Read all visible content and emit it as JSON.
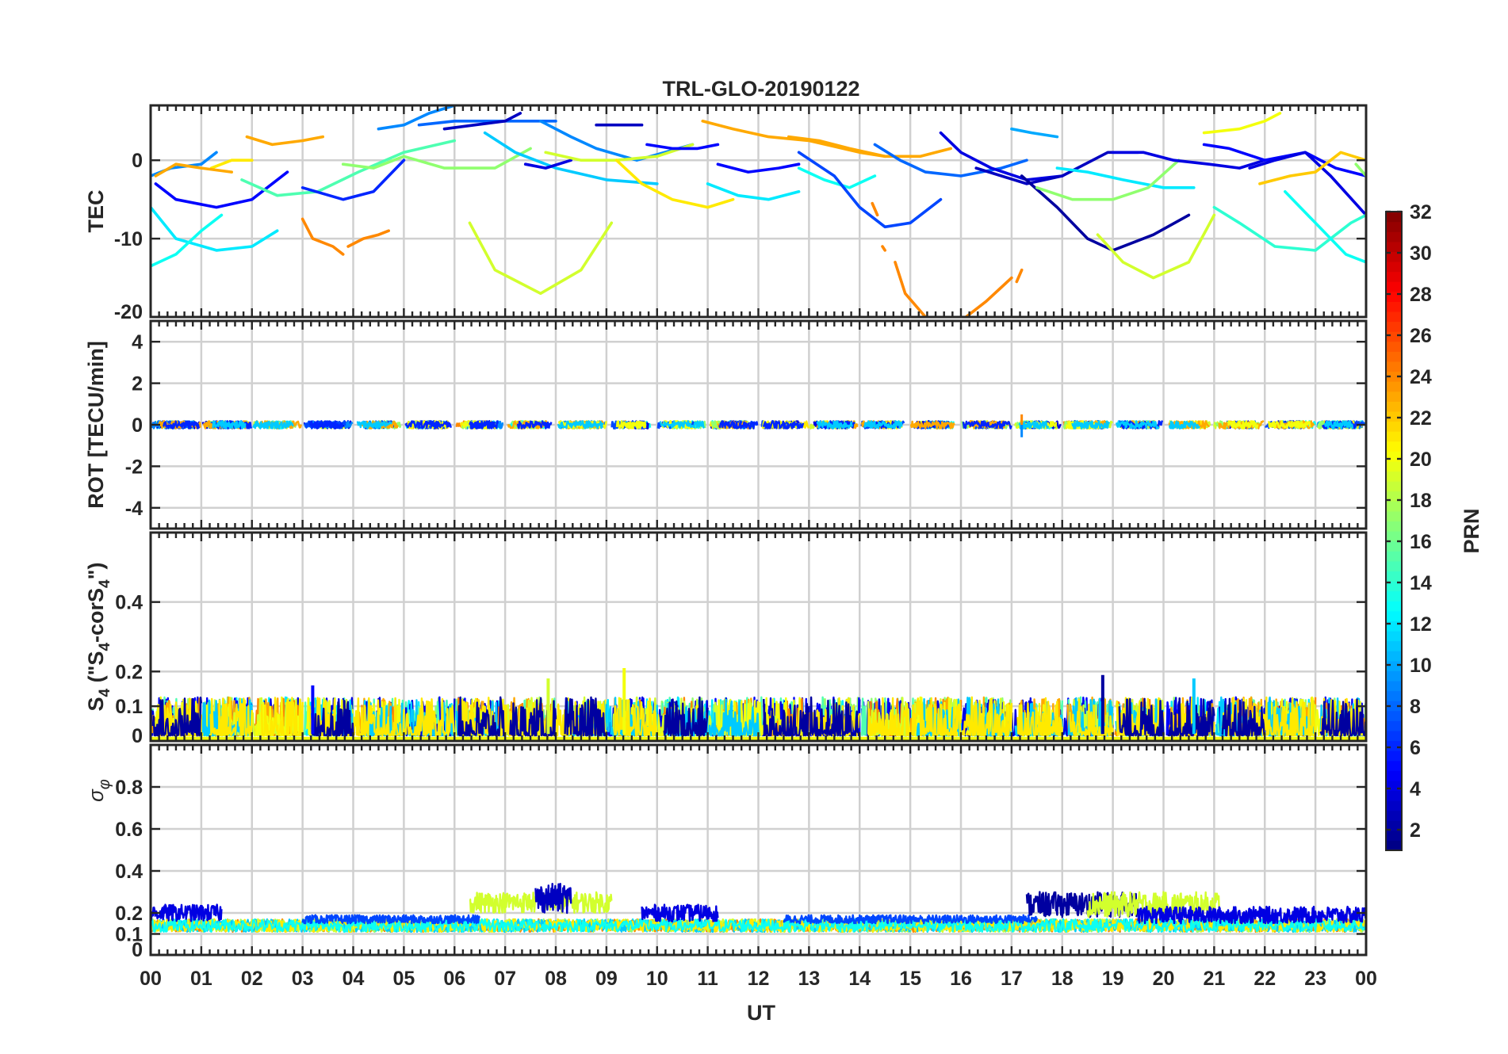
{
  "chart_data": {
    "type": "line",
    "title": "TRL-GLO-20190122",
    "xlabel": "UT",
    "x_tick_labels": [
      "00",
      "01",
      "02",
      "03",
      "04",
      "05",
      "06",
      "07",
      "08",
      "09",
      "10",
      "11",
      "12",
      "13",
      "14",
      "15",
      "16",
      "17",
      "18",
      "19",
      "20",
      "21",
      "22",
      "23",
      "00"
    ],
    "xlim": [
      0,
      24
    ],
    "panels": [
      {
        "id": "tec",
        "ylabel": "TEC",
        "ylim": [
          -20,
          7
        ],
        "yticks": [
          0,
          -10,
          -20
        ],
        "ytick_labels": [
          "0",
          "-10",
          "-20"
        ],
        "grid_y": [
          0,
          -10
        ],
        "series": [
          {
            "prn": 9,
            "x": [
              0.0,
              0.4,
              1.0,
              1.3
            ],
            "y": [
              -2,
              -1,
              -0.5,
              1
            ]
          },
          {
            "prn": 5,
            "x": [
              0.1,
              0.5,
              1.3,
              2.0,
              2.7
            ],
            "y": [
              -3,
              -5,
              -6,
              -5,
              -1.5
            ]
          },
          {
            "prn": 12,
            "x": [
              0.0,
              0.5,
              1.3,
              2.0,
              2.5
            ],
            "y": [
              -6,
              -10,
              -11.5,
              -11,
              -9
            ]
          },
          {
            "prn": 13,
            "x": [
              0.0,
              0.5,
              1.0,
              1.4
            ],
            "y": [
              -13.5,
              -12,
              -9,
              -7
            ]
          },
          {
            "prn": 21,
            "x": [
              1.2,
              1.6,
              2.0
            ],
            "y": [
              -1,
              0,
              0
            ]
          },
          {
            "prn": 23,
            "x": [
              1.9,
              2.4,
              3.0,
              3.4
            ],
            "y": [
              3,
              2,
              2.5,
              3
            ]
          },
          {
            "prn": 23,
            "x": [
              0.1,
              0.5,
              1.0,
              1.6
            ],
            "y": [
              -2,
              -0.5,
              -1,
              -1.5
            ]
          },
          {
            "prn": 15,
            "x": [
              1.8,
              2.5,
              3.3,
              4.1,
              5.0,
              6.0
            ],
            "y": [
              -2.5,
              -4.5,
              -4,
              -1.5,
              1,
              2.5
            ]
          },
          {
            "prn": 17,
            "x": [
              3.8,
              4.4,
              5.0,
              5.8,
              6.8,
              7.5
            ],
            "y": [
              -0.5,
              -1,
              0.5,
              -1,
              -1,
              1.5
            ]
          },
          {
            "prn": 6,
            "x": [
              3.0,
              3.8,
              4.4,
              5.0
            ],
            "y": [
              -3.5,
              -5,
              -4,
              0
            ]
          },
          {
            "prn": 24,
            "x": [
              3.0,
              3.2,
              3.6,
              3.8
            ],
            "y": [
              -7.5,
              -10,
              -11,
              -12
            ]
          },
          {
            "prn": 24,
            "x": [
              3.9,
              4.2,
              4.5,
              4.7
            ],
            "y": [
              -11,
              -10,
              -9.5,
              -9
            ]
          },
          {
            "prn": 9,
            "x": [
              4.5,
              5.0,
              5.5,
              6.0,
              6.6
            ],
            "y": [
              4,
              4.5,
              6,
              7,
              7.5
            ]
          },
          {
            "prn": 8,
            "x": [
              5.3,
              6.0,
              7.0,
              8.0
            ],
            "y": [
              4.5,
              5,
              5,
              5
            ]
          },
          {
            "prn": 3,
            "x": [
              5.8,
              6.4,
              7.0,
              7.3
            ],
            "y": [
              4,
              4.5,
              5,
              6
            ]
          },
          {
            "prn": 19,
            "x": [
              6.3,
              6.8,
              7.7,
              8.5,
              9.1
            ],
            "y": [
              -8,
              -14,
              -17,
              -14,
              -8
            ]
          },
          {
            "prn": 11,
            "x": [
              6.6,
              7.2,
              8.0,
              9.0,
              10.0
            ],
            "y": [
              3.5,
              1,
              -1,
              -2.5,
              -3
            ]
          },
          {
            "prn": 4,
            "x": [
              7.4,
              7.8,
              8.3
            ],
            "y": [
              -0.5,
              -1,
              0
            ]
          },
          {
            "prn": 9,
            "x": [
              7.7,
              8.3,
              8.8,
              9.6,
              10.7
            ],
            "y": [
              5,
              3,
              1.5,
              0,
              2
            ]
          },
          {
            "prn": 3,
            "x": [
              8.8,
              9.2,
              9.7
            ],
            "y": [
              4.5,
              4.5,
              4.5
            ]
          },
          {
            "prn": 19,
            "x": [
              7.8,
              8.5,
              9.2,
              10.0,
              10.7
            ],
            "y": [
              1,
              0,
              0,
              0.5,
              2
            ]
          },
          {
            "prn": 21,
            "x": [
              9.2,
              9.7,
              10.3,
              11.0,
              11.5
            ],
            "y": [
              0,
              -3,
              -5,
              -6,
              -5
            ]
          },
          {
            "prn": 5,
            "x": [
              9.8,
              10.3,
              10.8,
              11.2
            ],
            "y": [
              2,
              1.5,
              1.5,
              2
            ]
          },
          {
            "prn": 23,
            "x": [
              10.9,
              11.5,
              12.2,
              13.0,
              14.0,
              14.5
            ],
            "y": [
              5,
              4,
              3,
              2.5,
              1,
              0.5
            ]
          },
          {
            "prn": 5,
            "x": [
              11.2,
              11.8,
              12.4,
              12.8
            ],
            "y": [
              -0.5,
              -1.5,
              -1,
              -0.5
            ]
          },
          {
            "prn": 12,
            "x": [
              11.0,
              11.6,
              12.2,
              12.8
            ],
            "y": [
              -3,
              -4.5,
              -5,
              -4
            ]
          },
          {
            "prn": 23,
            "x": [
              12.6,
              13.2,
              13.8,
              14.5,
              15.2,
              15.8
            ],
            "y": [
              3,
              2.5,
              1.5,
              0.5,
              0.5,
              1.5
            ]
          },
          {
            "prn": 13,
            "x": [
              12.8,
              13.3,
              13.8,
              14.3
            ],
            "y": [
              -1,
              -2.5,
              -3.5,
              -2
            ]
          },
          {
            "prn": 7,
            "x": [
              12.8,
              13.5,
              14.0,
              14.5,
              15.0,
              15.6
            ],
            "y": [
              1,
              -2,
              -6,
              -8.5,
              -8,
              -5
            ]
          },
          {
            "prn": 24,
            "x": [
              14.25,
              14.35
            ],
            "y": [
              -5.5,
              -7
            ]
          },
          {
            "prn": 24,
            "x": [
              14.45,
              14.5
            ],
            "y": [
              -11,
              -11.5
            ]
          },
          {
            "prn": 24,
            "x": [
              14.7,
              14.9,
              15.3,
              15.9,
              16.5,
              17.0
            ],
            "y": [
              -13,
              -17,
              -20,
              -21,
              -18,
              -15
            ]
          },
          {
            "prn": 24,
            "x": [
              17.1,
              17.2
            ],
            "y": [
              -15.5,
              -14
            ]
          },
          {
            "prn": 8,
            "x": [
              14.3,
              14.8,
              15.3,
              16.0,
              16.8,
              17.3
            ],
            "y": [
              2,
              0,
              -1.5,
              -2,
              -1,
              0
            ]
          },
          {
            "prn": 4,
            "x": [
              15.6,
              16.0,
              16.6,
              17.3,
              18.0
            ],
            "y": [
              3.5,
              1,
              -1,
              -2.5,
              -2
            ]
          },
          {
            "prn": 3,
            "x": [
              16.3,
              16.8,
              17.3,
              18.0,
              18.9,
              19.5
            ],
            "y": [
              -1,
              -2,
              -3,
              -2,
              1,
              1
            ]
          },
          {
            "prn": 2,
            "x": [
              17.2,
              17.9,
              18.5,
              19.0,
              19.8,
              20.5
            ],
            "y": [
              -2,
              -6,
              -10,
              -11.5,
              -9.5,
              -7
            ]
          },
          {
            "prn": 10,
            "x": [
              17.0,
              17.4,
              17.9
            ],
            "y": [
              4,
              3.5,
              3
            ]
          },
          {
            "prn": 12,
            "x": [
              17.9,
              18.5,
              19.2,
              20.0,
              20.6
            ],
            "y": [
              -1,
              -1.5,
              -2.5,
              -3.5,
              -3.5
            ]
          },
          {
            "prn": 17,
            "x": [
              17.5,
              18.2,
              19.0,
              19.7,
              20.3
            ],
            "y": [
              -3.5,
              -5,
              -5,
              -3.5,
              0
            ]
          },
          {
            "prn": 19,
            "x": [
              18.7,
              19.2,
              19.8,
              20.5,
              21.0
            ],
            "y": [
              -9.5,
              -13,
              -15,
              -13,
              -7
            ]
          },
          {
            "prn": 4,
            "x": [
              19.0,
              19.6,
              20.2,
              20.9,
              21.5,
              22.0
            ],
            "y": [
              1,
              1,
              0,
              -0.5,
              -1,
              0
            ]
          },
          {
            "prn": 20,
            "x": [
              20.8,
              21.5,
              22.0,
              22.3
            ],
            "y": [
              3.5,
              4,
              5,
              6
            ]
          },
          {
            "prn": 5,
            "x": [
              20.8,
              21.3,
              22.0,
              22.8,
              23.4,
              24.0
            ],
            "y": [
              2,
              1.5,
              0,
              1,
              -1,
              -2
            ]
          },
          {
            "prn": 4,
            "x": [
              21.7,
              22.2,
              22.8,
              23.3,
              24.0
            ],
            "y": [
              -1,
              0,
              1,
              -2,
              -7
            ]
          },
          {
            "prn": 22,
            "x": [
              21.9,
              22.5,
              23.0,
              23.5,
              24.0
            ],
            "y": [
              -3,
              -2,
              -1.5,
              1,
              0
            ]
          },
          {
            "prn": 14,
            "x": [
              21.0,
              21.5,
              22.2,
              23.0,
              23.7,
              24.0
            ],
            "y": [
              -6,
              -8,
              -11,
              -11.5,
              -8,
              -7
            ]
          },
          {
            "prn": 13,
            "x": [
              22.4,
              23.0,
              23.6,
              24.0
            ],
            "y": [
              -4,
              -8,
              -12,
              -13
            ]
          },
          {
            "prn": 17,
            "x": [
              23.8,
              24.0
            ],
            "y": [
              -0.5,
              -2
            ]
          }
        ]
      },
      {
        "id": "rot",
        "ylabel": "ROT [TECU/min]",
        "ylim": [
          -5,
          5
        ],
        "yticks": [
          4,
          2,
          0,
          -2,
          -4
        ],
        "ytick_labels": [
          "4",
          "2",
          "0",
          "-2",
          "-4"
        ],
        "grid_y": [
          4,
          2,
          0,
          -2,
          -4
        ],
        "noise": {
          "center": 0,
          "amplitude": 0.18,
          "spikes": [
            {
              "x": 17.2,
              "y": -0.6,
              "prn": 9
            },
            {
              "x": 17.2,
              "y": 0.5,
              "prn": 24
            }
          ]
        }
      },
      {
        "id": "s4",
        "ylabel": "S4 (\"S4-corS4\")",
        "ylim": [
          0,
          0.6
        ],
        "yticks": [
          0.4,
          0.2,
          0.1,
          0
        ],
        "ytick_labels": [
          "0.4",
          "0.2",
          "0.1",
          "0"
        ],
        "grid_y": [
          0.4,
          0.2,
          0.1
        ],
        "noise": {
          "center": 0.04,
          "amplitude": 0.05,
          "peaks": [
            {
              "x": 9.35,
              "y": 0.21,
              "prn": 20
            },
            {
              "x": 18.8,
              "y": 0.19,
              "prn": 2
            },
            {
              "x": 7.85,
              "y": 0.18,
              "prn": 19
            },
            {
              "x": 3.2,
              "y": 0.16,
              "prn": 5
            },
            {
              "x": 20.6,
              "y": 0.18,
              "prn": 11
            }
          ]
        }
      },
      {
        "id": "sigma_phi",
        "ylabel": "σφ",
        "ylim": [
          0,
          1
        ],
        "yticks": [
          0.8,
          0.6,
          0.4,
          0.2,
          0.1,
          0
        ],
        "ytick_labels": [
          "0.8",
          "0.6",
          "0.4",
          "0.2",
          "0.1",
          "0"
        ],
        "grid_y": [
          0.8,
          0.6,
          0.4,
          0.2,
          0.1
        ],
        "bands": [
          {
            "prn": 4,
            "x": [
              0.0,
              1.4
            ],
            "center": 0.2,
            "amp": 0.04
          },
          {
            "prn": 19,
            "x": [
              6.3,
              9.1
            ],
            "center": 0.25,
            "amp": 0.05
          },
          {
            "prn": 3,
            "x": [
              7.6,
              8.3
            ],
            "center": 0.27,
            "amp": 0.07
          },
          {
            "prn": 4,
            "x": [
              9.7,
              11.2
            ],
            "center": 0.2,
            "amp": 0.04
          },
          {
            "prn": 2,
            "x": [
              17.3,
              19.5
            ],
            "center": 0.24,
            "amp": 0.06
          },
          {
            "prn": 19,
            "x": [
              18.5,
              21.1
            ],
            "center": 0.24,
            "amp": 0.06
          },
          {
            "prn": 4,
            "x": [
              19.5,
              24.0
            ],
            "center": 0.19,
            "amp": 0.04
          },
          {
            "prn": 7,
            "x": [
              3.0,
              6.5
            ],
            "center": 0.17,
            "amp": 0.02
          },
          {
            "prn": 7,
            "x": [
              12.5,
              17.5
            ],
            "center": 0.17,
            "amp": 0.02
          }
        ],
        "baseline": {
          "center": 0.14,
          "amp": 0.03
        }
      }
    ],
    "colorbar": {
      "label": "PRN",
      "range": [
        1,
        32
      ],
      "tick_labels": [
        "32",
        "30",
        "28",
        "26",
        "24",
        "22",
        "20",
        "18",
        "16",
        "14",
        "12",
        "10",
        "8",
        "6",
        "4",
        "2"
      ],
      "tick_values": [
        32,
        30,
        28,
        26,
        24,
        22,
        20,
        18,
        16,
        14,
        12,
        10,
        8,
        6,
        4,
        2
      ],
      "colormap": "jet"
    }
  }
}
